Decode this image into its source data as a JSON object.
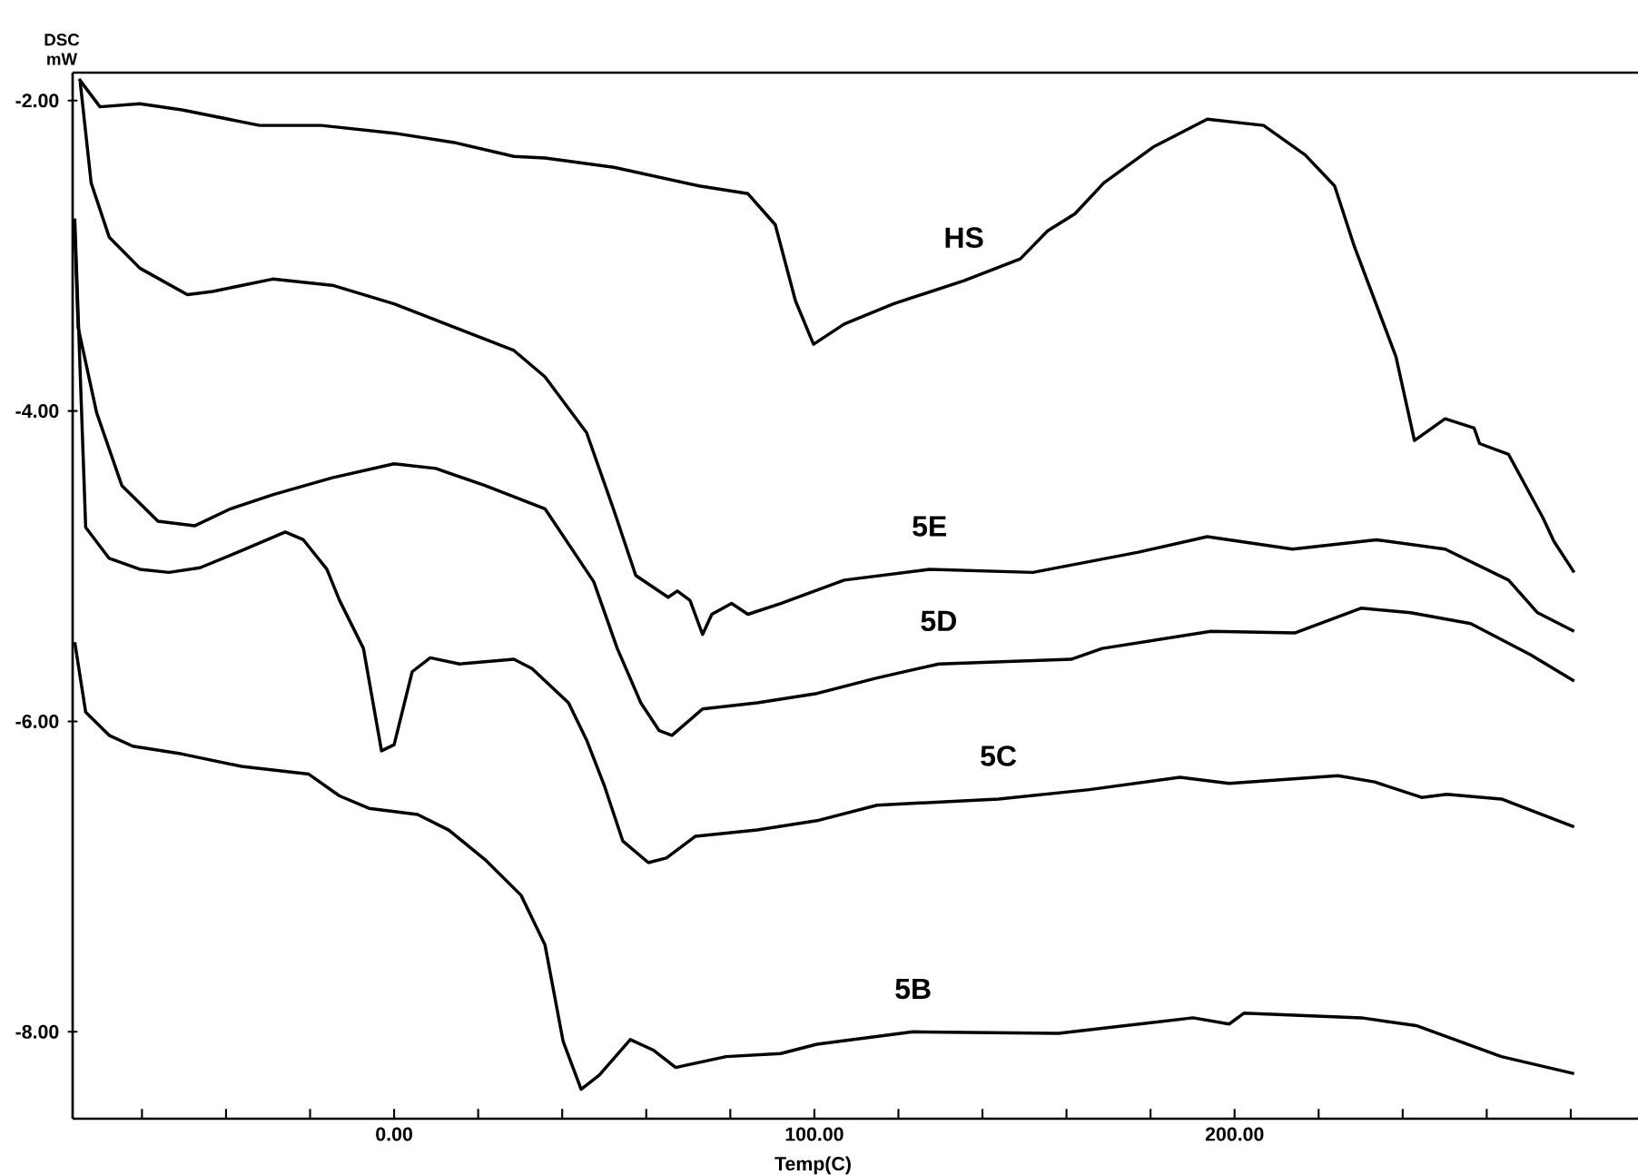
{
  "chart_data": {
    "type": "line",
    "xlabel": "Temp(C)",
    "ylabel": "DSC mW",
    "xlim": [
      -76.5,
      296
    ],
    "ylim": [
      -8.56,
      -1.82
    ],
    "xticks": [
      {
        "value": -60,
        "label": null
      },
      {
        "value": -40,
        "label": null
      },
      {
        "value": -20,
        "label": null
      },
      {
        "value": 0,
        "label": "0.00"
      },
      {
        "value": 20,
        "label": null
      },
      {
        "value": 40,
        "label": null
      },
      {
        "value": 60,
        "label": null
      },
      {
        "value": 80,
        "label": null
      },
      {
        "value": 100,
        "label": "100.00"
      },
      {
        "value": 120,
        "label": null
      },
      {
        "value": 140,
        "label": null
      },
      {
        "value": 160,
        "label": null
      },
      {
        "value": 180,
        "label": null
      },
      {
        "value": 200,
        "label": "200.00"
      },
      {
        "value": 220,
        "label": null
      },
      {
        "value": 240,
        "label": null
      },
      {
        "value": 260,
        "label": null
      },
      {
        "value": 280,
        "label": null
      }
    ],
    "yticks": [
      {
        "value": -2,
        "label": "-2.00"
      },
      {
        "value": -4,
        "label": "-4.00"
      },
      {
        "value": -6,
        "label": "-6.00"
      },
      {
        "value": -8,
        "label": "-8.00"
      }
    ],
    "marker": "none",
    "line_style": "solid",
    "series": [
      {
        "name": "HS",
        "color": "#000000",
        "x": [
          -75,
          -70,
          -60.5,
          -50.5,
          -32,
          -17.3,
          0,
          14.3,
          28.5,
          35.9,
          52.3,
          72.6,
          84.2,
          90.7,
          95.5,
          99.8,
          107.1,
          118.8,
          135.6,
          149,
          155.5,
          162,
          168.9,
          180.6,
          193.5,
          206.9,
          216.8,
          223.8,
          228.5,
          238.4,
          242.8,
          250.1,
          257,
          258.3,
          265.2,
          273.4,
          276,
          280.8
        ],
        "values": [
          -1.86,
          -2.04,
          -2.02,
          -2.06,
          -2.16,
          -2.16,
          -2.21,
          -2.27,
          -2.36,
          -2.37,
          -2.43,
          -2.55,
          -2.6,
          -2.8,
          -3.29,
          -3.57,
          -3.44,
          -3.31,
          -3.16,
          -3.02,
          -2.84,
          -2.73,
          -2.53,
          -2.3,
          -2.12,
          -2.16,
          -2.35,
          -2.55,
          -2.94,
          -3.65,
          -4.19,
          -4.05,
          -4.11,
          -4.21,
          -4.28,
          -4.69,
          -4.84,
          -5.04
        ]
      },
      {
        "name": "5E",
        "color": "#000000",
        "x": [
          -74.7,
          -72.1,
          -67.8,
          -60.5,
          -49.2,
          -43.2,
          -28.9,
          -14.7,
          0,
          14.3,
          28.5,
          35.9,
          45.8,
          52.3,
          57.5,
          65.2,
          67.4,
          70.4,
          73.4,
          75.6,
          80.3,
          84.2,
          92,
          107.1,
          127.4,
          152,
          177.1,
          193.5,
          213.8,
          233.7,
          250.1,
          265.2,
          272.1,
          280.8
        ],
        "values": [
          -1.88,
          -2.53,
          -2.88,
          -3.08,
          -3.25,
          -3.23,
          -3.15,
          -3.19,
          -3.31,
          -3.46,
          -3.61,
          -3.78,
          -4.14,
          -4.64,
          -5.06,
          -5.2,
          -5.16,
          -5.22,
          -5.44,
          -5.31,
          -5.24,
          -5.31,
          -5.24,
          -5.09,
          -5.02,
          -5.04,
          -4.91,
          -4.81,
          -4.89,
          -4.83,
          -4.89,
          -5.09,
          -5.3,
          -5.42
        ]
      },
      {
        "name": "5D",
        "color": "#000000",
        "x": [
          -76,
          -75.2,
          -70.8,
          -64.8,
          -56.2,
          -47.5,
          -38.9,
          -28.9,
          -14.7,
          0,
          9.9,
          21.6,
          35.9,
          47.5,
          53.1,
          58.7,
          63.1,
          66.1,
          73.4,
          86.4,
          100.6,
          114.9,
          129.6,
          161.1,
          168.5,
          194.4,
          214.3,
          230.2,
          241.9,
          256.2,
          270.4,
          280.8
        ],
        "values": [
          -2.84,
          -3.46,
          -4.01,
          -4.48,
          -4.71,
          -4.74,
          -4.63,
          -4.54,
          -4.43,
          -4.34,
          -4.37,
          -4.48,
          -4.63,
          -5.1,
          -5.53,
          -5.88,
          -6.06,
          -6.09,
          -5.92,
          -5.88,
          -5.82,
          -5.72,
          -5.63,
          -5.6,
          -5.53,
          -5.42,
          -5.43,
          -5.27,
          -5.3,
          -5.37,
          -5.57,
          -5.74
        ]
      },
      {
        "name": "5C",
        "color": "#000000",
        "x": [
          -76,
          -73.4,
          -67.8,
          -60.5,
          -53.6,
          -46.2,
          -36.3,
          -25.9,
          -21.6,
          -16,
          -13,
          -7.3,
          -3,
          0,
          4.3,
          8.6,
          15.6,
          28.5,
          32.8,
          41.5,
          45.8,
          50.1,
          54.4,
          60.5,
          64.8,
          71.7,
          86.4,
          100.6,
          114.9,
          143.8,
          165.4,
          187,
          198.7,
          224.6,
          233.3,
          244.5,
          250.5,
          263.5,
          280.8
        ],
        "values": [
          -2.76,
          -4.75,
          -4.95,
          -5.02,
          -5.04,
          -5.01,
          -4.9,
          -4.78,
          -4.83,
          -5.02,
          -5.22,
          -5.53,
          -6.19,
          -6.15,
          -5.68,
          -5.59,
          -5.63,
          -5.6,
          -5.66,
          -5.88,
          -6.12,
          -6.42,
          -6.77,
          -6.91,
          -6.88,
          -6.74,
          -6.7,
          -6.64,
          -6.54,
          -6.5,
          -6.44,
          -6.36,
          -6.4,
          -6.35,
          -6.39,
          -6.49,
          -6.47,
          -6.5,
          -6.68
        ]
      },
      {
        "name": "5B",
        "color": "#000000",
        "x": [
          -76,
          -73.4,
          -67.8,
          -62.2,
          -50.5,
          -36.3,
          -20.3,
          -13,
          -6,
          5.6,
          13,
          21.6,
          30.2,
          35.9,
          40.2,
          44.5,
          48.8,
          56.2,
          61.8,
          67,
          79,
          92,
          100.6,
          123.5,
          158.1,
          190.1,
          198.7,
          202.2,
          230.2,
          243.2,
          263.5,
          280.8
        ],
        "values": [
          -5.49,
          -5.94,
          -6.09,
          -6.16,
          -6.21,
          -6.29,
          -6.34,
          -6.48,
          -6.56,
          -6.6,
          -6.7,
          -6.89,
          -7.12,
          -7.44,
          -8.06,
          -8.37,
          -8.28,
          -8.05,
          -8.12,
          -8.23,
          -8.16,
          -8.14,
          -8.08,
          -8.0,
          -8.01,
          -7.91,
          -7.95,
          -7.88,
          -7.91,
          -7.96,
          -8.16,
          -8.27
        ]
      }
    ]
  }
}
